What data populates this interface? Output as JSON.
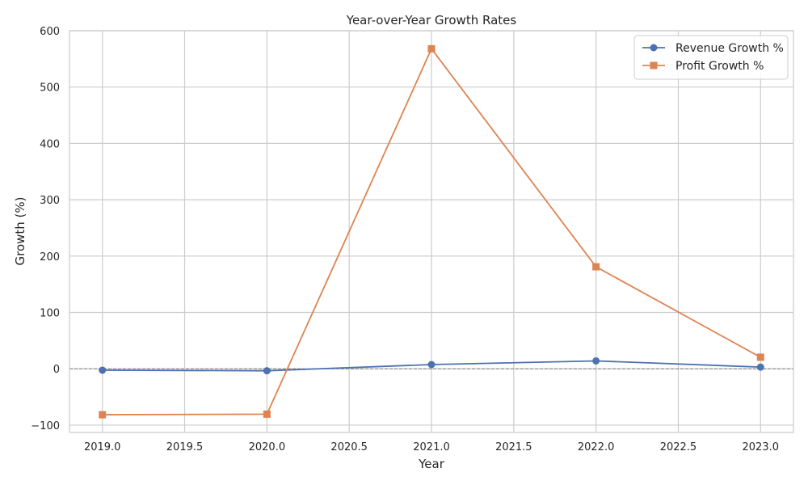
{
  "chart_data": {
    "type": "line",
    "title": "Year-over-Year Growth Rates",
    "xlabel": "Year",
    "ylabel": "Growth (%)",
    "xlim": [
      2018.8,
      2023.2
    ],
    "ylim": [
      -113,
      600
    ],
    "x_ticks": [
      2019.0,
      2019.5,
      2020.0,
      2020.5,
      2021.0,
      2021.5,
      2022.0,
      2022.5,
      2023.0
    ],
    "x_tick_labels": [
      "2019.0",
      "2019.5",
      "2020.0",
      "2020.5",
      "2021.0",
      "2021.5",
      "2022.0",
      "2022.5",
      "2023.0"
    ],
    "y_ticks": [
      -100,
      0,
      100,
      200,
      300,
      400,
      500,
      600
    ],
    "y_tick_labels": [
      "−100",
      "0",
      "100",
      "200",
      "300",
      "400",
      "500",
      "600"
    ],
    "grid": true,
    "reference_line": {
      "y": 0,
      "style": "dashed",
      "color": "#808080"
    },
    "legend_position": "top-right",
    "series": [
      {
        "name": "Revenue Growth %",
        "marker": "circle",
        "color": "#4c72b0",
        "x": [
          2019,
          2020,
          2021,
          2022,
          2023
        ],
        "y": [
          -2.5,
          -3.5,
          7.5,
          14,
          3
        ]
      },
      {
        "name": "Profit Growth %",
        "marker": "square",
        "color": "#dd8452",
        "x": [
          2019,
          2020,
          2021,
          2022,
          2023
        ],
        "y": [
          -81.5,
          -80.5,
          568,
          181,
          20.5
        ]
      }
    ]
  }
}
